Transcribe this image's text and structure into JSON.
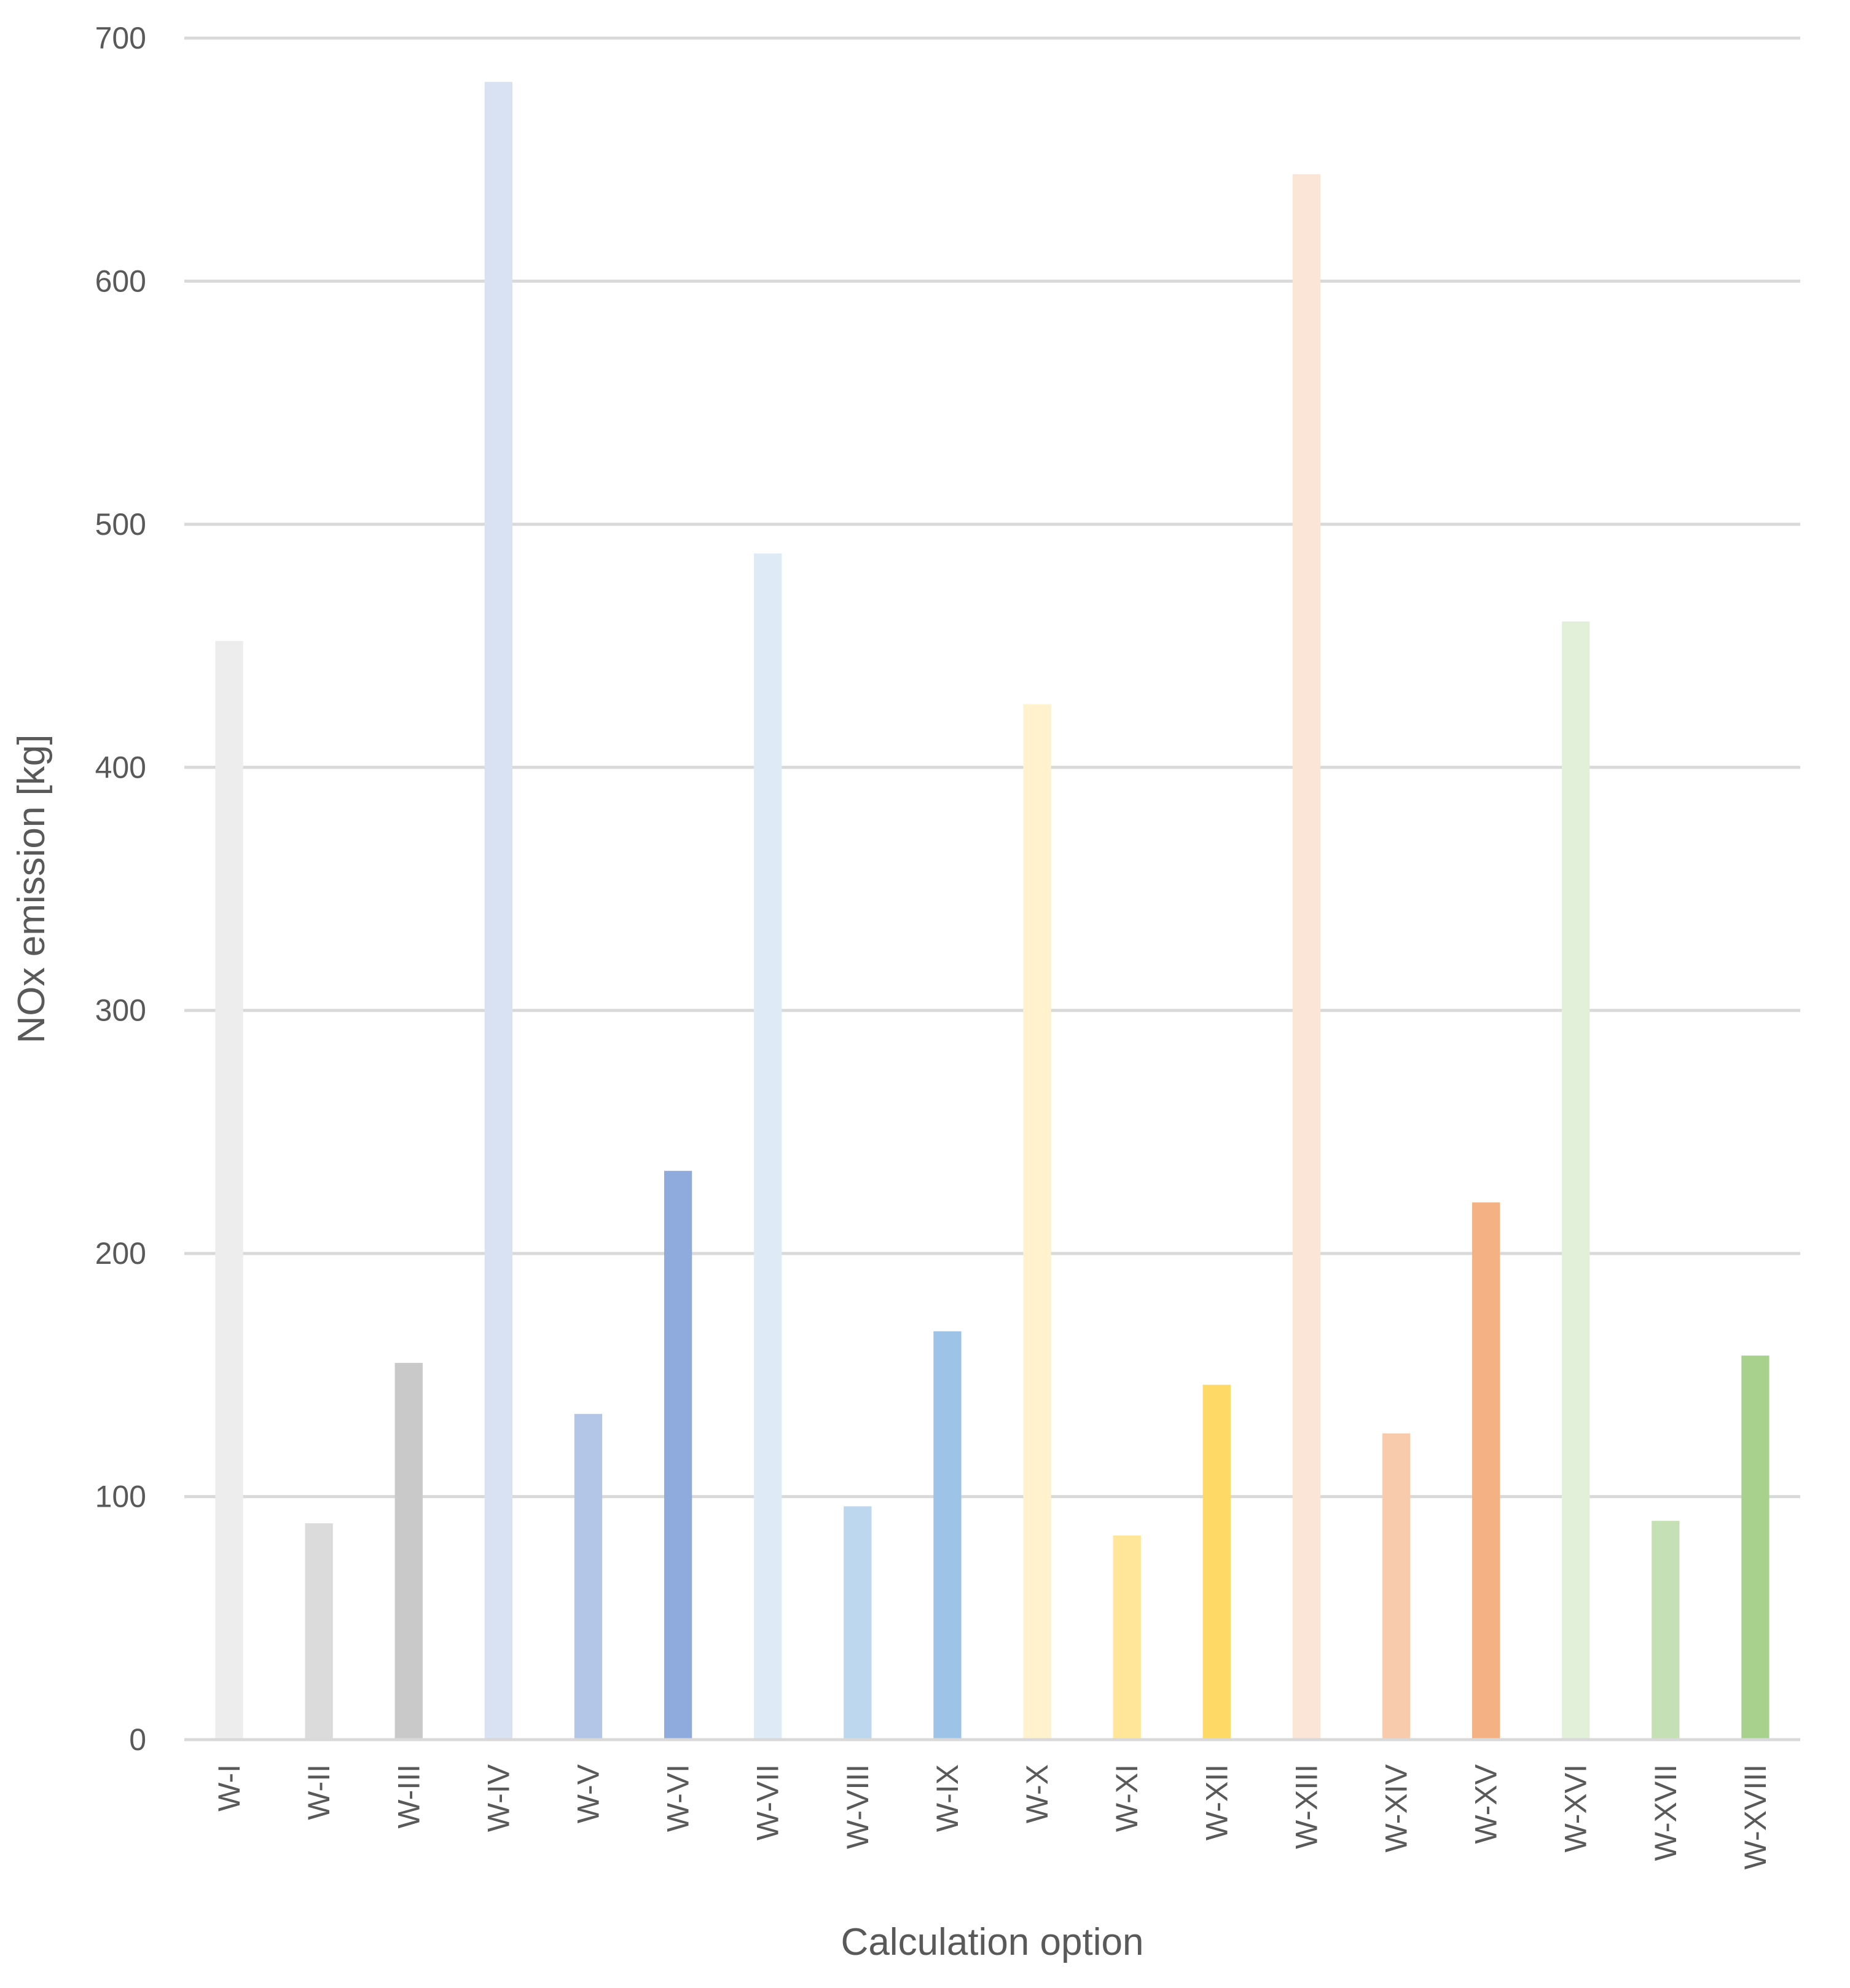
{
  "chart_data": {
    "type": "bar",
    "title": "",
    "xlabel": "Calculation option",
    "ylabel": "NOx emission [kg]",
    "ylim": [
      0,
      700
    ],
    "yticks": [
      0,
      100,
      200,
      300,
      400,
      500,
      600,
      700
    ],
    "grid": true,
    "legend": "none",
    "categories": [
      "W-I",
      "W-II",
      "W-III",
      "W-IV",
      "W-V",
      "W-VI",
      "W-VII",
      "W-VIII",
      "W-IX",
      "W-X",
      "W-XI",
      "W-XII",
      "W-XIII",
      "W-XIV",
      "W-XV",
      "W-XVI",
      "W-XVII",
      "W-XVIII"
    ],
    "values": [
      452,
      89,
      155,
      682,
      134,
      234,
      488,
      96,
      168,
      426,
      84,
      146,
      644,
      126,
      221,
      460,
      90,
      158
    ],
    "colors": [
      "#ededed",
      "#dbdbdb",
      "#c9c9c9",
      "#d9e2f3",
      "#b4c6e7",
      "#8faadc",
      "#deebf7",
      "#bdd7ee",
      "#9dc3e6",
      "#fff2cc",
      "#ffe699",
      "#ffd966",
      "#fbe5d6",
      "#f8cbad",
      "#f4b183",
      "#e2f0d9",
      "#c5e0b4",
      "#a9d18e"
    ],
    "gridline_color": "#d9d9d9",
    "axis_color": "#d9d9d9"
  }
}
